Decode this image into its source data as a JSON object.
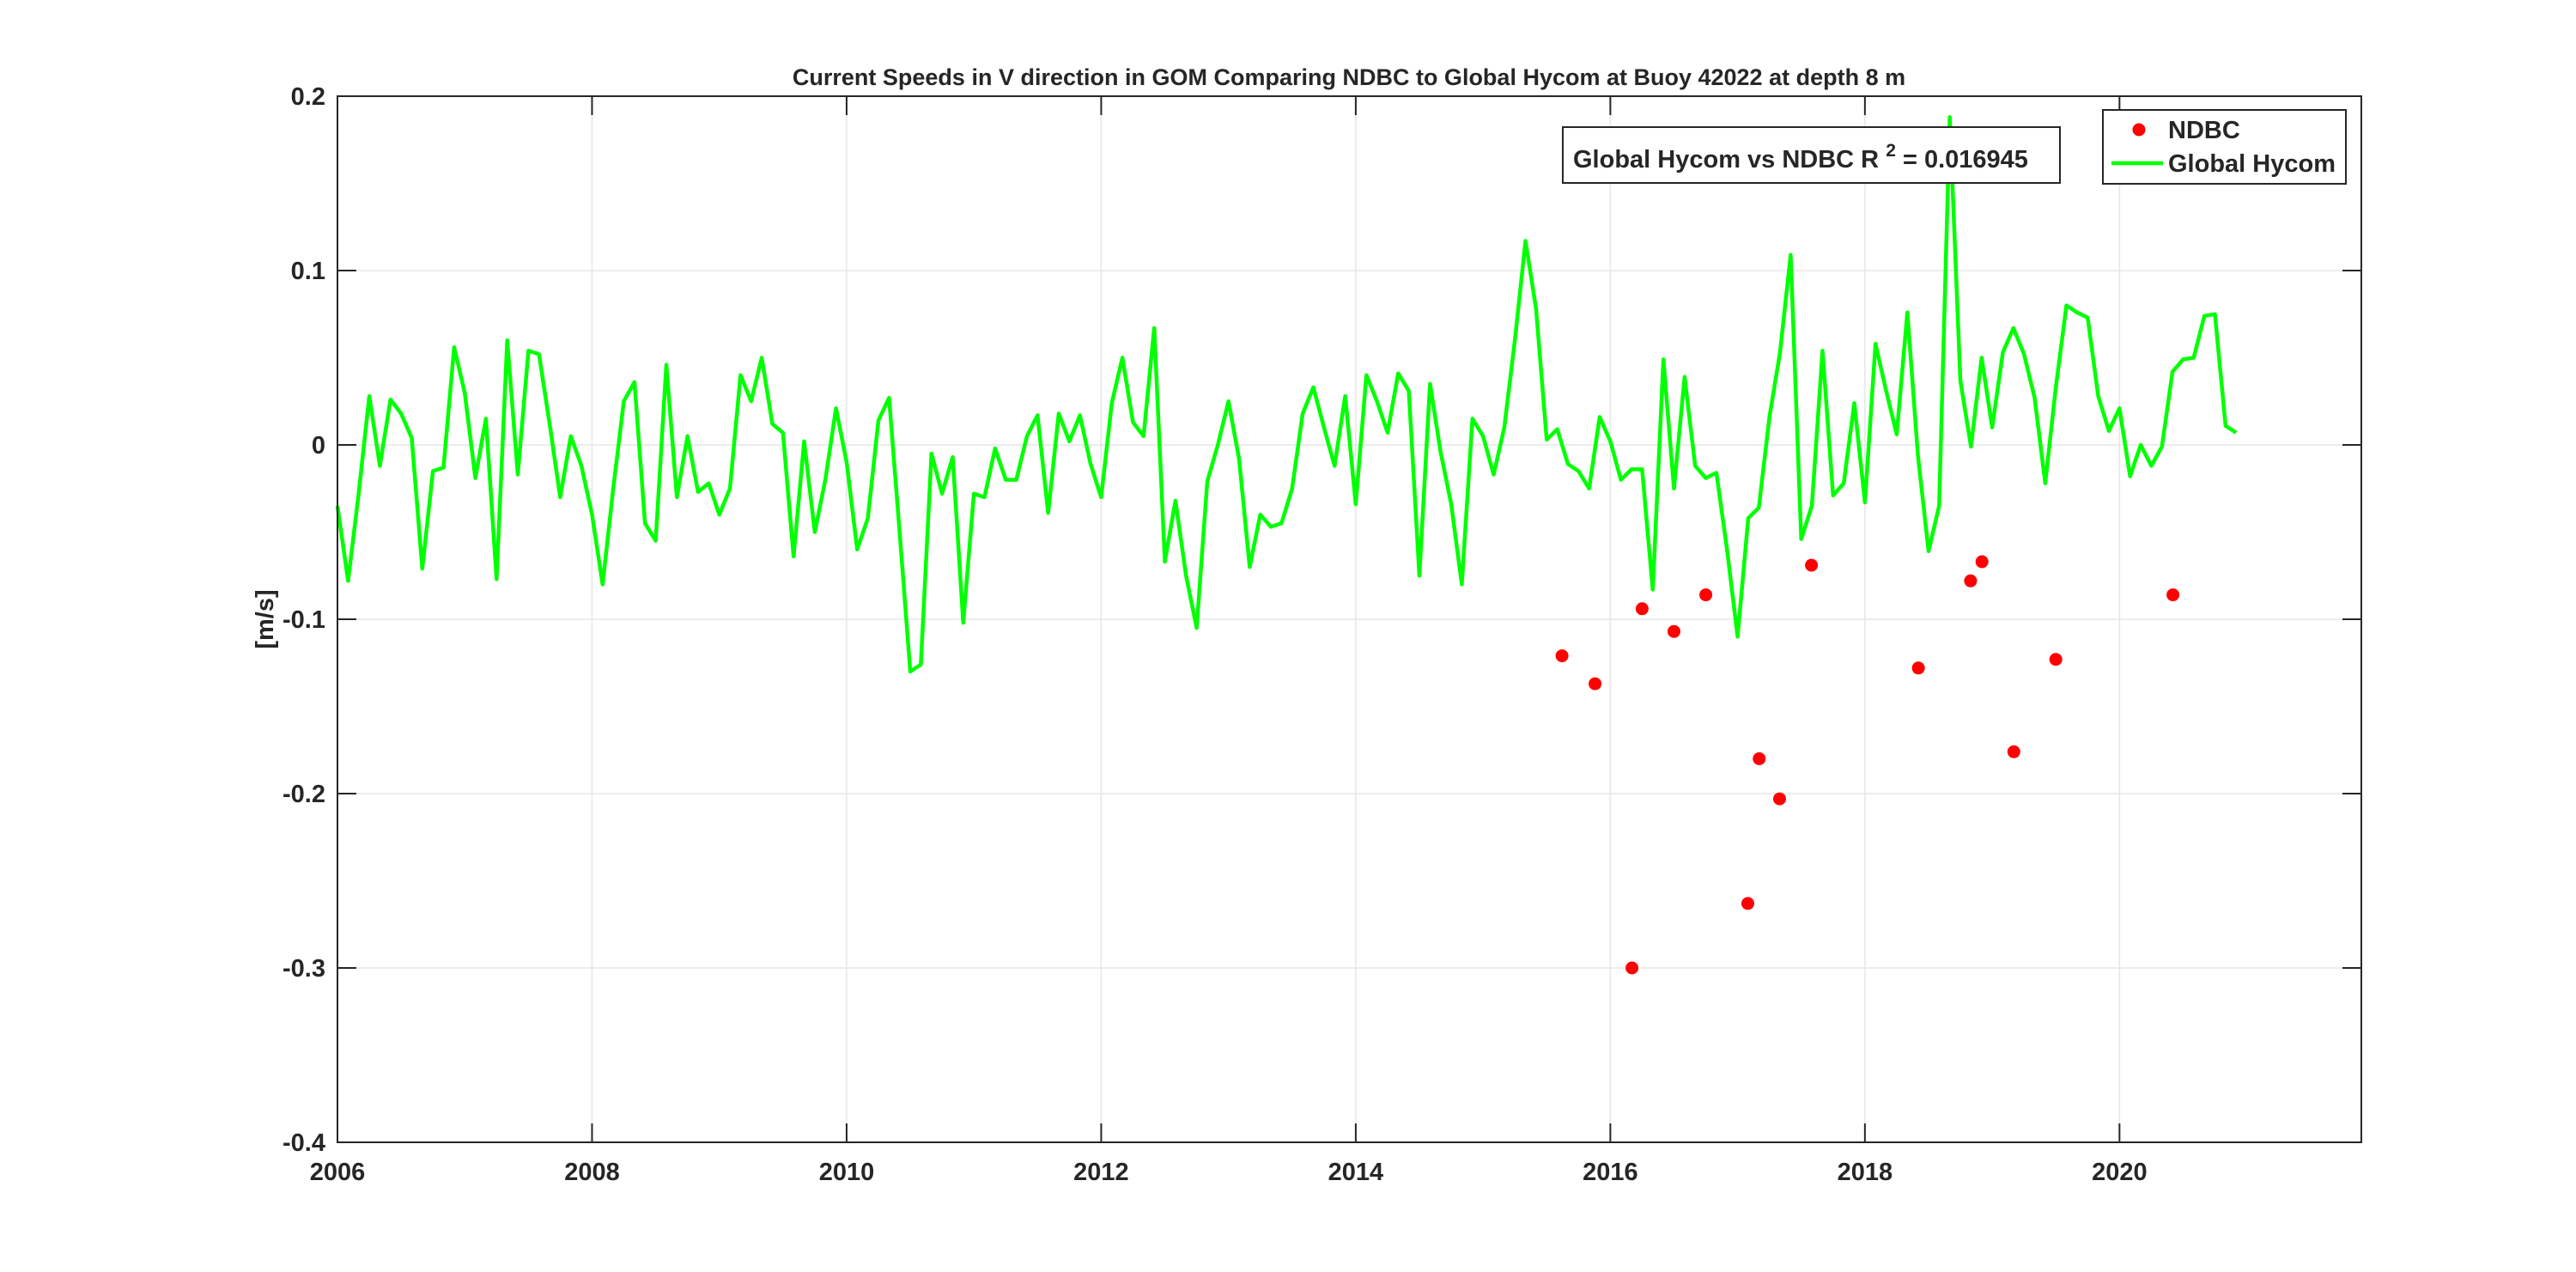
{
  "chart_data": {
    "type": "line",
    "title": "Current Speeds in V direction in GOM Comparing NDBC to Global Hycom at Buoy  42022  at depth  8 m",
    "xlabel": "",
    "ylabel": "[m/s]",
    "xlim": [
      2006,
      2021.9
    ],
    "ylim": [
      -0.4,
      0.2
    ],
    "xticks": [
      2006,
      2008,
      2010,
      2012,
      2014,
      2016,
      2018,
      2020
    ],
    "yticks": [
      -0.4,
      -0.3,
      -0.2,
      -0.1,
      0,
      0.1,
      0.2
    ],
    "ytick_labels": [
      "-0.4",
      "-0.3",
      "-0.2",
      "-0.1",
      "0",
      "0.1",
      "0.2"
    ],
    "grid": true,
    "legend_position": "top-right",
    "annotation": {
      "prefix": "Global Hycom vs NDBC R",
      "sup": "2",
      "suffix": " = 0.016945"
    },
    "series": [
      {
        "name": "NDBC",
        "style": "markers",
        "color": "#ff0000",
        "points": [
          [
            2015.62,
            -0.121
          ],
          [
            2015.88,
            -0.137
          ],
          [
            2016.17,
            -0.3
          ],
          [
            2016.25,
            -0.094
          ],
          [
            2016.5,
            -0.107
          ],
          [
            2016.75,
            -0.086
          ],
          [
            2017.08,
            -0.263
          ],
          [
            2017.17,
            -0.18
          ],
          [
            2017.33,
            -0.203
          ],
          [
            2017.58,
            -0.069
          ],
          [
            2018.42,
            -0.128
          ],
          [
            2018.83,
            -0.078
          ],
          [
            2018.92,
            -0.067
          ],
          [
            2019.17,
            -0.176
          ],
          [
            2019.5,
            -0.123
          ],
          [
            2020.42,
            -0.086
          ]
        ]
      },
      {
        "name": "Global Hycom",
        "style": "line",
        "color": "#00ff00",
        "start_year": 2006.0,
        "step_years": 0.0833333,
        "values": [
          -0.035,
          -0.078,
          -0.028,
          0.028,
          -0.012,
          0.026,
          0.018,
          0.004,
          -0.071,
          -0.015,
          -0.013,
          0.056,
          0.03,
          -0.019,
          0.015,
          -0.077,
          0.06,
          -0.017,
          0.054,
          0.052,
          0.012,
          -0.03,
          0.005,
          -0.012,
          -0.04,
          -0.08,
          -0.025,
          0.025,
          0.036,
          -0.045,
          -0.055,
          0.046,
          -0.03,
          0.005,
          -0.027,
          -0.022,
          -0.04,
          -0.025,
          0.04,
          0.025,
          0.05,
          0.012,
          0.007,
          -0.064,
          0.002,
          -0.05,
          -0.02,
          0.021,
          -0.01,
          -0.06,
          -0.042,
          0.014,
          0.027,
          -0.05,
          -0.13,
          -0.126,
          -0.005,
          -0.028,
          -0.007,
          -0.102,
          -0.028,
          -0.03,
          -0.002,
          -0.02,
          -0.02,
          0.005,
          0.017,
          -0.039,
          0.018,
          0.002,
          0.017,
          -0.011,
          -0.03,
          0.024,
          0.05,
          0.013,
          0.005,
          0.067,
          -0.067,
          -0.032,
          -0.075,
          -0.105,
          -0.021,
          0.0,
          0.025,
          -0.008,
          -0.07,
          -0.04,
          -0.047,
          -0.045,
          -0.025,
          0.018,
          0.033,
          0.01,
          -0.012,
          0.028,
          -0.034,
          0.04,
          0.025,
          0.007,
          0.041,
          0.031,
          -0.075,
          0.035,
          -0.004,
          -0.034,
          -0.08,
          0.015,
          0.005,
          -0.017,
          0.01,
          0.06,
          0.117,
          0.078,
          0.003,
          0.009,
          -0.011,
          -0.015,
          -0.025,
          0.016,
          0.002,
          -0.02,
          -0.014,
          -0.014,
          -0.083,
          0.049,
          -0.025,
          0.039,
          -0.012,
          -0.019,
          -0.016,
          -0.06,
          -0.11,
          -0.042,
          -0.036,
          0.016,
          0.053,
          0.109,
          -0.054,
          -0.035,
          0.054,
          -0.029,
          -0.022,
          0.024,
          -0.033,
          0.058,
          0.031,
          0.006,
          0.076,
          -0.006,
          -0.061,
          -0.035,
          0.188,
          0.037,
          -0.001,
          0.05,
          0.01,
          0.053,
          0.067,
          0.052,
          0.027,
          -0.022,
          0.033,
          0.08,
          0.076,
          0.073,
          0.028,
          0.008,
          0.021,
          -0.018,
          0.0,
          -0.012,
          -0.001,
          0.042,
          0.049,
          0.05,
          0.074,
          0.075,
          0.011,
          0.007
        ]
      }
    ]
  }
}
